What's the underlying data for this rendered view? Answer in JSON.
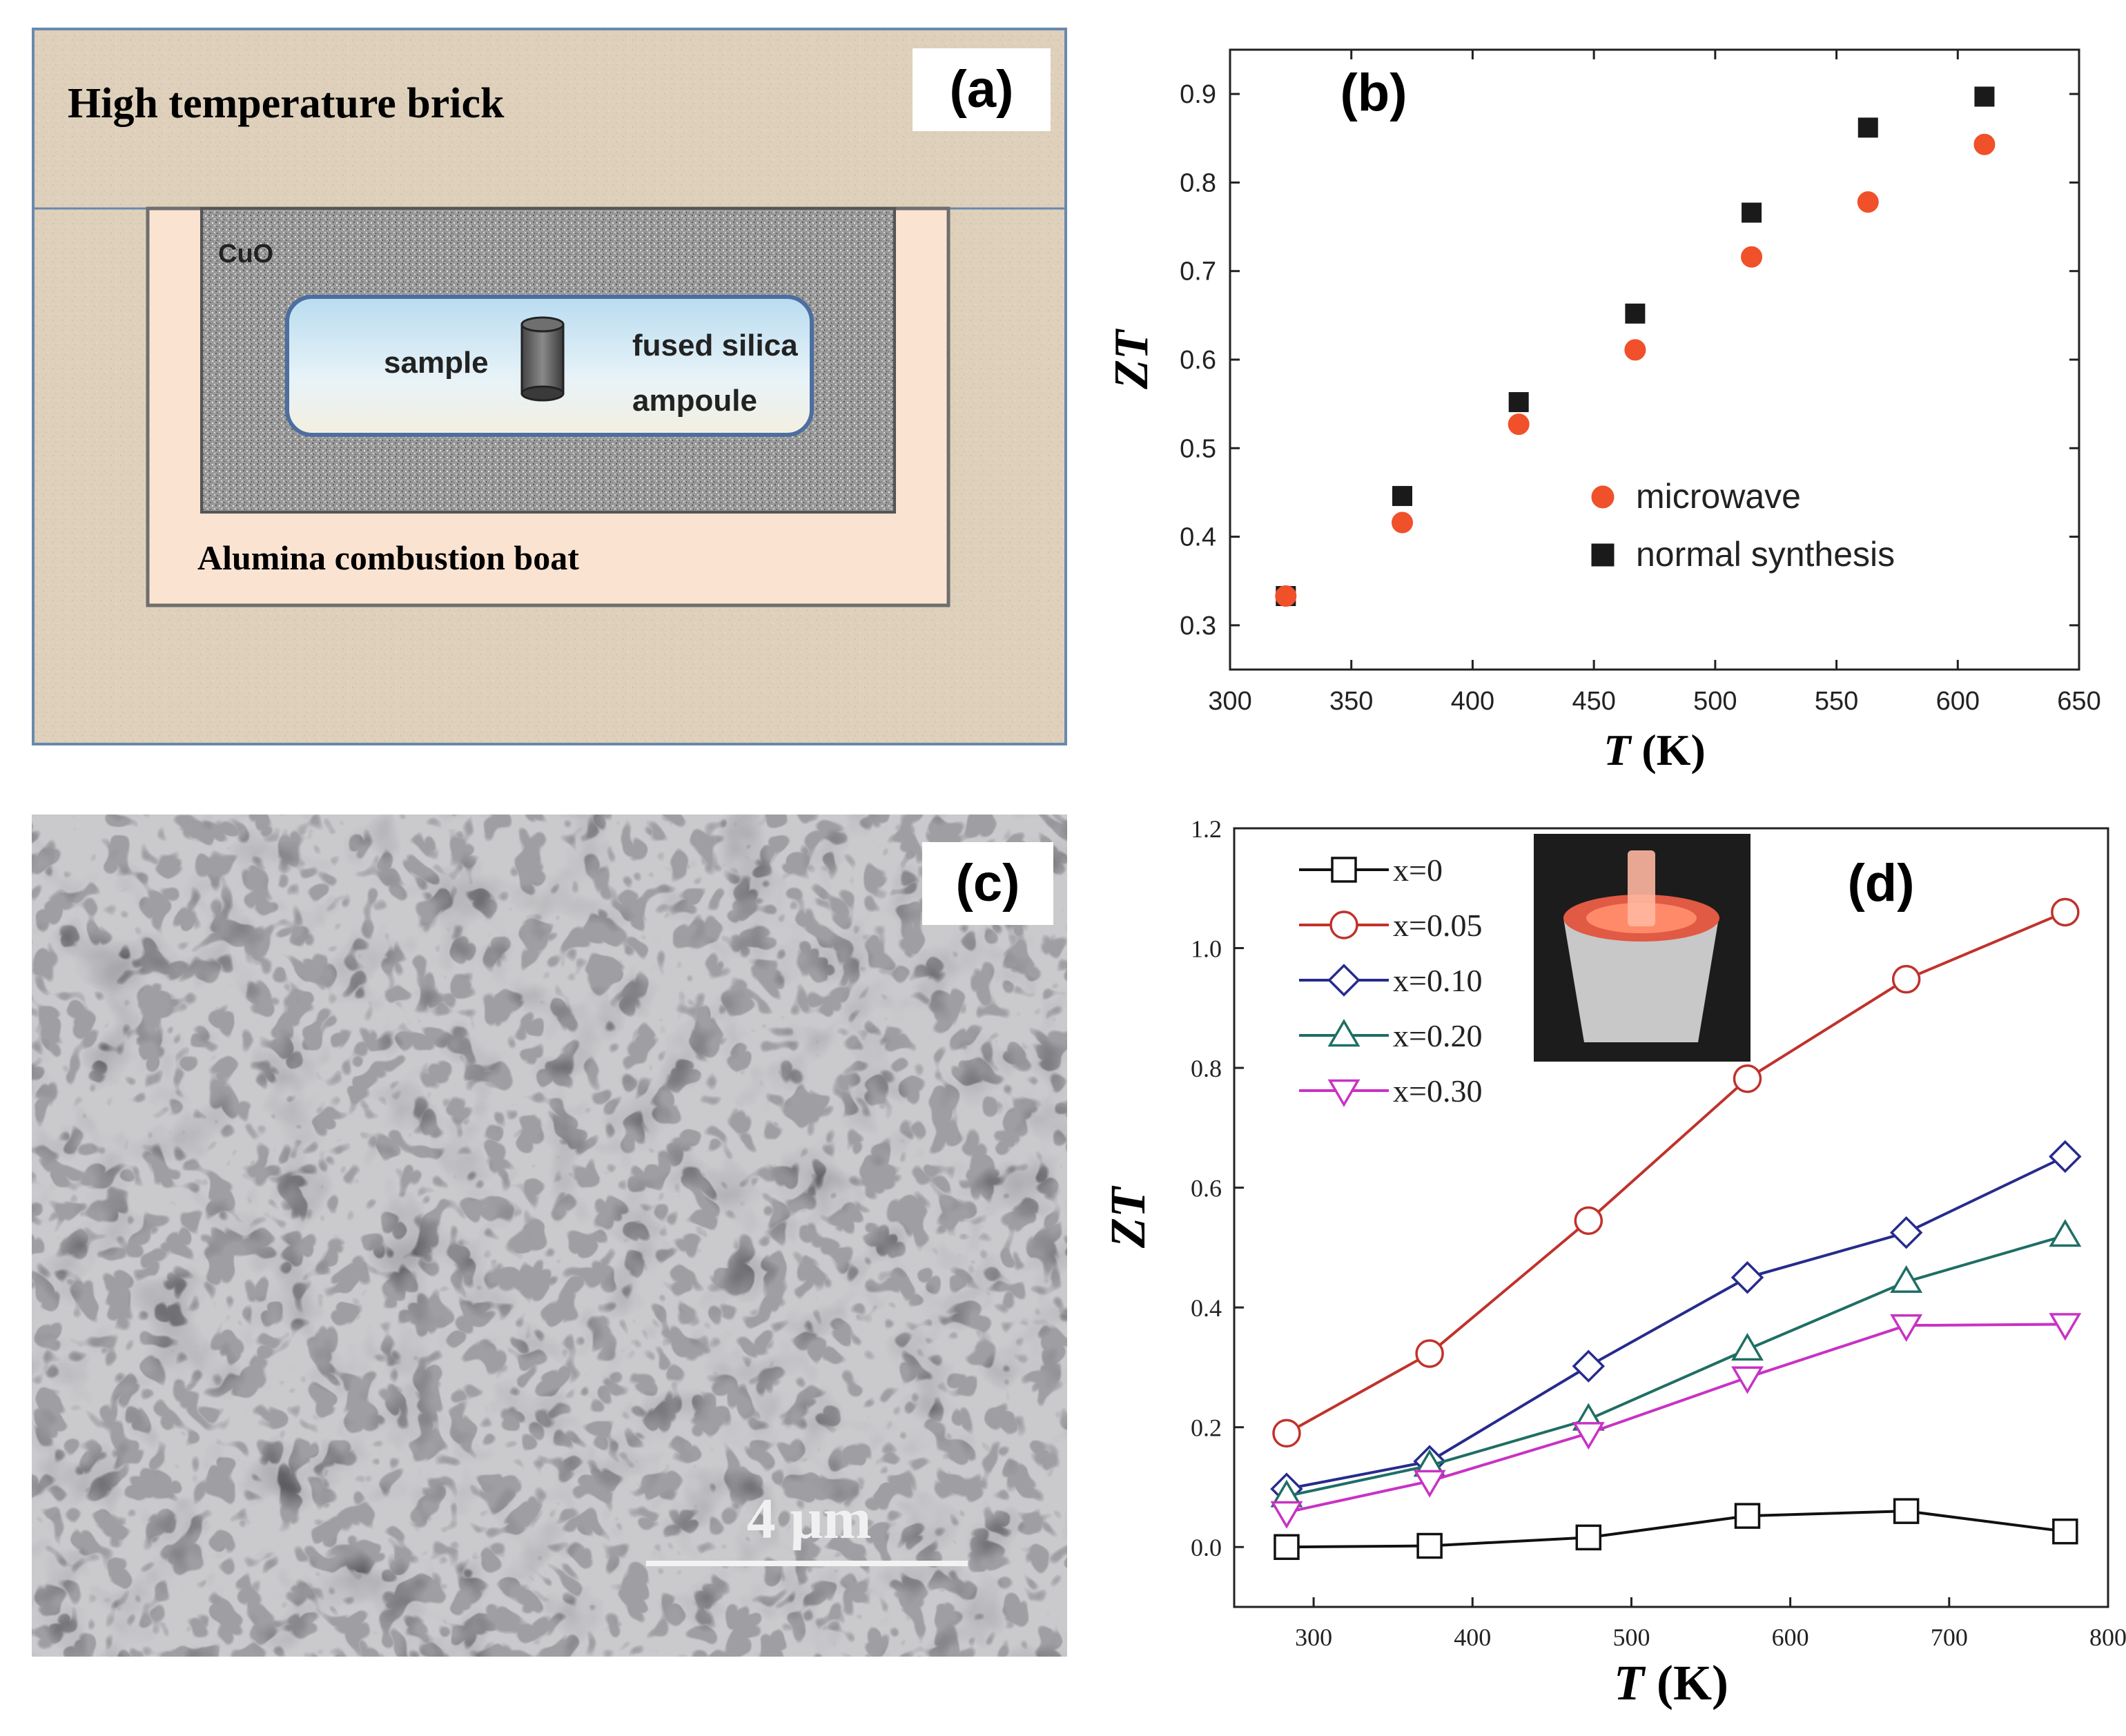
{
  "panel_a": {
    "label": "(a)",
    "brick_label": "High temperature brick",
    "cuo_label": "CuO",
    "sample_label": "sample",
    "ampoule_label_1": "fused silica",
    "ampoule_label_2": "ampoule",
    "boat_label": "Alumina combustion boat",
    "colors": {
      "brick": "#ded0bb",
      "boat": "#fbe3d2",
      "cuo": "#9c9c9c",
      "ampoule": "#cfe6f2",
      "border": "#6a89ad"
    }
  },
  "panel_c": {
    "label": "(c)",
    "scalebar_label": "4 μm"
  },
  "chart_data": [
    {
      "panel": "(b)",
      "type": "scatter",
      "xlabel_italic": "T",
      "xlabel_unit": " (K)",
      "ylabel": "ZT",
      "xlim": [
        300,
        650
      ],
      "ylim": [
        0.25,
        0.95
      ],
      "xticks": [
        300,
        350,
        400,
        450,
        500,
        550,
        600,
        650
      ],
      "yticks": [
        0.3,
        0.4,
        0.5,
        0.6,
        0.7,
        0.8,
        0.9
      ],
      "legend_position": "lower-right",
      "series": [
        {
          "name": "microwave",
          "marker": "circle",
          "color": "#f0502a",
          "x": [
            323,
            371,
            419,
            467,
            515,
            563,
            611
          ],
          "y": [
            0.333,
            0.416,
            0.527,
            0.611,
            0.716,
            0.778,
            0.843
          ]
        },
        {
          "name": "normal synthesis",
          "marker": "square",
          "color": "#1a1a1a",
          "x": [
            323,
            371,
            419,
            467,
            515,
            563,
            611
          ],
          "y": [
            0.333,
            0.446,
            0.552,
            0.652,
            0.766,
            0.862,
            0.897
          ]
        }
      ]
    },
    {
      "panel": "(d)",
      "type": "line",
      "xlabel_italic": "T",
      "xlabel_unit": " (K)",
      "ylabel": "ZT",
      "xlim": [
        250,
        800
      ],
      "ylim": [
        -0.1,
        1.2
      ],
      "xticks": [
        300,
        400,
        500,
        600,
        700,
        800
      ],
      "yticks": [
        0.0,
        0.2,
        0.4,
        0.6,
        0.8,
        1.0,
        1.2
      ],
      "legend_position": "top-left",
      "inset": "photo of glowing sample in crucible",
      "x": [
        283,
        373,
        473,
        573,
        673,
        773
      ],
      "series": [
        {
          "name": "x=0",
          "marker": "square",
          "color": "#111111",
          "values": [
            0.0,
            0.002,
            0.016,
            0.052,
            0.06,
            0.026
          ]
        },
        {
          "name": "x=0.05",
          "marker": "circle",
          "color": "#c0322c",
          "values": [
            0.19,
            0.323,
            0.545,
            0.782,
            0.948,
            1.06
          ]
        },
        {
          "name": "x=0.10",
          "marker": "diamond",
          "color": "#262b8c",
          "values": [
            0.097,
            0.143,
            0.302,
            0.45,
            0.525,
            0.652
          ]
        },
        {
          "name": "x=0.20",
          "marker": "triangle-up",
          "color": "#1f6e64",
          "values": [
            0.085,
            0.136,
            0.213,
            0.33,
            0.443,
            0.52
          ]
        },
        {
          "name": "x=0.30",
          "marker": "triangle-down",
          "color": "#c832c4",
          "values": [
            0.058,
            0.11,
            0.19,
            0.283,
            0.37,
            0.372
          ]
        }
      ]
    }
  ]
}
